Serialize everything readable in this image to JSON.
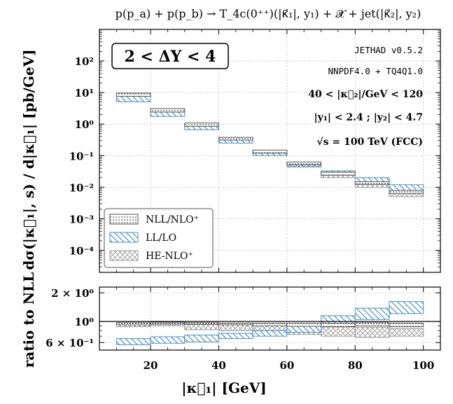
{
  "chart_data": {
    "type": "step",
    "title": "p(p_a) + p(p_b) → T_4c(0⁺⁺)(|κ⃗₁|, y₁) + 𝓧 + jet(|κ⃗₂|, y₂)",
    "xlabel": "|κ⃗₁| [GeV]",
    "ylabel_top": "dσ(|κ⃗₁|, s) / d|κ⃗₁| [pb/GeV]",
    "ylabel_bottom": "ratio to NLL",
    "xlim": [
      5,
      105
    ],
    "ylim_top": [
      2e-05,
      1000
    ],
    "ylim_bottom": [
      0.5,
      2.3
    ],
    "x_ticks": [
      20,
      40,
      60,
      80,
      100
    ],
    "x_tick_labels": [
      "20",
      "40",
      "60",
      "80",
      "100"
    ],
    "y_ticks_top": [
      0.0001,
      0.001,
      0.01,
      0.1,
      1,
      10,
      100
    ],
    "y_tick_labels_top": [
      "10⁻⁴",
      "10⁻³",
      "10⁻²",
      "10⁻¹",
      "10⁰",
      "10¹",
      "10²"
    ],
    "y_ticks_bottom": [
      0.6,
      1.0,
      2.0
    ],
    "y_tick_labels_bottom": [
      "6 × 10⁻¹",
      "10⁰",
      "2 × 10⁰"
    ],
    "bin_edges": [
      10,
      20,
      30,
      40,
      50,
      60,
      70,
      80,
      90,
      100
    ],
    "series": [
      {
        "name": "NLL/NLO⁺",
        "hatch": "dots",
        "color": "#555555",
        "lower": [
          7.6,
          2.4,
          0.85,
          0.31,
          0.12,
          0.052,
          0.024,
          0.0123,
          0.0063
        ],
        "upper": [
          9.6,
          3.1,
          1.08,
          0.38,
          0.15,
          0.063,
          0.03,
          0.015,
          0.0079
        ]
      },
      {
        "name": "LL/LO",
        "hatch": "diagonal",
        "color": "#4a8fc4",
        "lower": [
          5.1,
          1.75,
          0.66,
          0.25,
          0.1,
          0.047,
          0.024,
          0.0135,
          0.0078
        ],
        "upper": [
          7.6,
          2.55,
          0.98,
          0.34,
          0.135,
          0.062,
          0.033,
          0.02,
          0.012
        ]
      },
      {
        "name": "HE-NLO⁺",
        "hatch": "crosshatch",
        "color": "#9a9a9a",
        "lower": [
          7.2,
          2.3,
          0.77,
          0.27,
          0.105,
          0.043,
          0.02,
          0.0098,
          0.005
        ],
        "upper": [
          9.0,
          2.9,
          0.98,
          0.34,
          0.13,
          0.055,
          0.027,
          0.0135,
          0.0067
        ]
      }
    ],
    "ratio_series": [
      {
        "name": "NLL/NLO⁺",
        "lower": [
          0.92,
          0.94,
          0.93,
          0.92,
          0.9,
          0.89,
          0.88,
          0.9,
          0.88
        ],
        "upper": [
          0.97,
          0.98,
          0.97,
          0.96,
          0.96,
          0.96,
          0.96,
          0.97,
          0.96
        ]
      },
      {
        "name": "LL/LO",
        "lower": [
          0.57,
          0.59,
          0.61,
          0.66,
          0.7,
          0.77,
          0.9,
          1.05,
          1.21
        ],
        "upper": [
          0.66,
          0.69,
          0.72,
          0.75,
          0.8,
          0.89,
          1.15,
          1.38,
          1.62
        ]
      },
      {
        "name": "HE-NLO⁺",
        "lower": [
          0.88,
          0.9,
          0.82,
          0.8,
          0.78,
          0.73,
          0.7,
          0.68,
          0.7
        ],
        "upper": [
          0.97,
          0.99,
          0.97,
          0.96,
          0.94,
          0.88,
          0.88,
          0.87,
          0.84
        ]
      }
    ],
    "annotations": {
      "range_box": "2 < ΔY < 4",
      "lines": [
        "JETHAD v0.5.2",
        "NNPDF4.0 + TQ4Q1.0",
        "40 < |κ⃗₂|/GeV < 120",
        "|y₁| < 2.4 ;  |y₂| < 4.7",
        "√s = 100 TeV (FCC)"
      ]
    },
    "legend_position": "bottom-left",
    "grid": true
  }
}
